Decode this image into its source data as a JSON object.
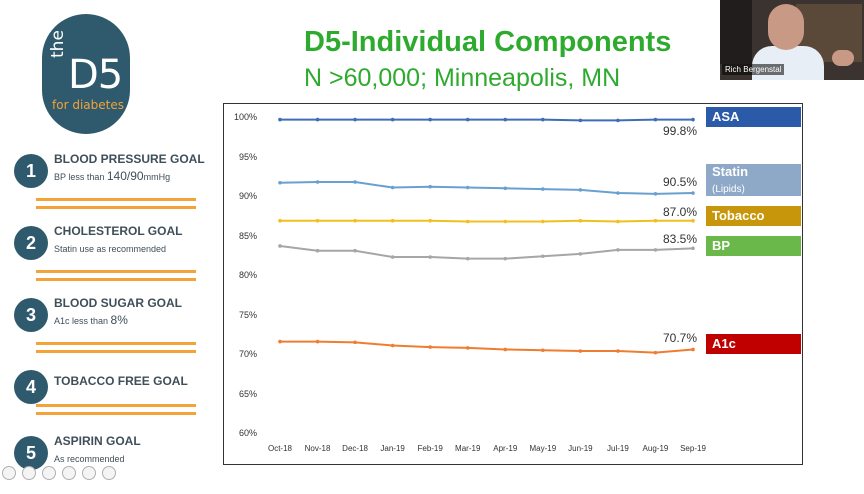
{
  "logo": {
    "the": "the",
    "brand": "D5",
    "tagline": "for diabetes"
  },
  "goals": [
    {
      "num": "1",
      "title": "BLOOD PRESSURE GOAL",
      "sub": "BP less than ",
      "sub_big": "140/90",
      "sub_unit": "mmHg"
    },
    {
      "num": "2",
      "title": "CHOLESTEROL GOAL",
      "sub": "Statin use as recommended",
      "sub_big": "",
      "sub_unit": ""
    },
    {
      "num": "3",
      "title": "BLOOD SUGAR GOAL",
      "sub": "A1c less than ",
      "sub_big": "8%",
      "sub_unit": ""
    },
    {
      "num": "4",
      "title": "TOBACCO FREE GOAL",
      "sub": "",
      "sub_big": "",
      "sub_unit": ""
    },
    {
      "num": "5",
      "title": "ASPIRIN GOAL",
      "sub": "As recommended",
      "sub_big": "",
      "sub_unit": ""
    }
  ],
  "header": {
    "title": "D5-Individual Components",
    "subtitle": "N >60,000; Minneapolis, MN"
  },
  "video": {
    "presenter": "Rich Bergenstal"
  },
  "colors": {
    "title_green": "#2eaa2e",
    "teal": "#2f5a6e",
    "orange_rule": "#f2a33a"
  },
  "chart_data": {
    "type": "line",
    "categories": [
      "Oct-18",
      "Nov-18",
      "Dec-18",
      "Jan-19",
      "Feb-19",
      "Mar-19",
      "Apr-19",
      "May-19",
      "Jun-19",
      "Jul-19",
      "Aug-19",
      "Sep-19"
    ],
    "ylim": [
      60,
      100
    ],
    "yticks": [
      "60%",
      "65%",
      "70%",
      "75%",
      "80%",
      "85%",
      "90%",
      "95%",
      "100%"
    ],
    "grid": false,
    "series": [
      {
        "name": "ASA",
        "color": "#3f6db5",
        "legend_color": "#2a5aa8",
        "values": [
          99.8,
          99.8,
          99.8,
          99.8,
          99.8,
          99.8,
          99.8,
          99.8,
          99.7,
          99.7,
          99.8,
          99.8
        ],
        "end_label": "99.8%"
      },
      {
        "name": "Statin",
        "name_sub": "(Lipids)",
        "color": "#6aa0d0",
        "legend_color": "#8ea8c8",
        "values": [
          91.8,
          91.9,
          91.9,
          91.2,
          91.3,
          91.2,
          91.1,
          91.0,
          90.9,
          90.5,
          90.4,
          90.5
        ],
        "end_label": "90.5%"
      },
      {
        "name": "Tobacco",
        "color": "#f0c020",
        "legend_color": "#c8960a",
        "values": [
          87.0,
          87.0,
          87.0,
          87.0,
          87.0,
          86.9,
          86.9,
          86.9,
          87.0,
          86.9,
          87.0,
          87.0
        ],
        "end_label": "87.0%"
      },
      {
        "name": "BP",
        "color": "#a6a6a6",
        "legend_color": "#6ab84a",
        "values": [
          83.8,
          83.2,
          83.2,
          82.4,
          82.4,
          82.2,
          82.2,
          82.5,
          82.8,
          83.3,
          83.3,
          83.5
        ],
        "end_label": "83.5%"
      },
      {
        "name": "A1c",
        "color": "#ee7d31",
        "legend_color": "#c00000",
        "values": [
          71.7,
          71.7,
          71.6,
          71.2,
          71.0,
          70.9,
          70.7,
          70.6,
          70.5,
          70.5,
          70.3,
          70.7
        ],
        "end_label": "70.7%"
      }
    ]
  }
}
